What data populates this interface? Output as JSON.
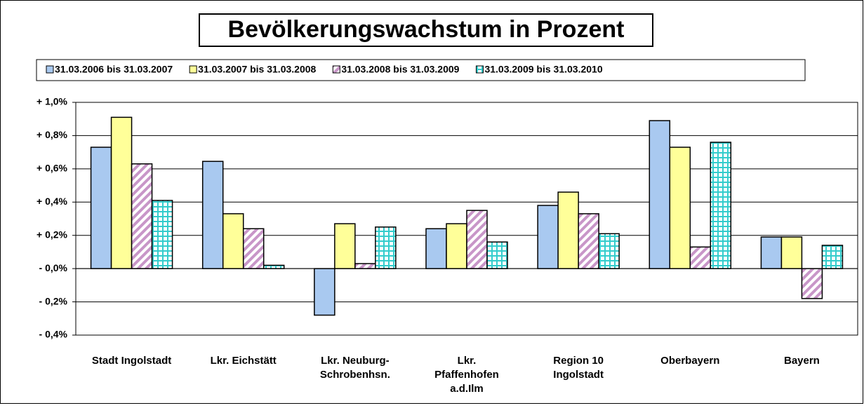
{
  "chart_data": {
    "type": "bar",
    "title": "Bevölkerungswachstum in Prozent",
    "categories": [
      "Stadt Ingolstadt",
      "Lkr. Eichstätt",
      "Lkr. Neuburg-\nSchrobenhsn.",
      "Lkr.\nPfaffenhofen\na.d.Ilm",
      "Region 10\nIngolstadt",
      "Oberbayern",
      "Bayern"
    ],
    "series": [
      {
        "name": "31.03.2006 bis 31.03.2007",
        "color": "#a9c9f0",
        "pattern": "solid",
        "values": [
          0.73,
          0.645,
          -0.28,
          0.24,
          0.38,
          0.89,
          0.19
        ]
      },
      {
        "name": "31.03.2007 bis 31.03.2008",
        "color": "#ffff99",
        "pattern": "solid",
        "values": [
          0.91,
          0.33,
          0.27,
          0.27,
          0.46,
          0.73,
          0.19
        ]
      },
      {
        "name": "31.03.2008 bis 31.03.2009",
        "color": "#c896c8",
        "pattern": "diagonal",
        "values": [
          0.63,
          0.24,
          0.03,
          0.35,
          0.33,
          0.13,
          -0.18
        ]
      },
      {
        "name": "31.03.2009 bis 31.03.2010",
        "color": "#33cccc",
        "pattern": "grid",
        "values": [
          0.41,
          0.02,
          0.25,
          0.16,
          0.21,
          0.76,
          0.14
        ]
      }
    ],
    "ylim": [
      -0.4,
      1.0
    ],
    "yticks": [
      {
        "value": 1.0,
        "label": "+ 1,0%"
      },
      {
        "value": 0.8,
        "label": "+ 0,8%"
      },
      {
        "value": 0.6,
        "label": "+ 0,6%"
      },
      {
        "value": 0.4,
        "label": "+ 0,4%"
      },
      {
        "value": 0.2,
        "label": "+ 0,2%"
      },
      {
        "value": 0,
        "label": "- 0,0%"
      },
      {
        "value": -0.2,
        "label": "- 0,2%"
      },
      {
        "value": -0.4,
        "label": "- 0,4%"
      }
    ],
    "grid": true,
    "legend": "top"
  }
}
